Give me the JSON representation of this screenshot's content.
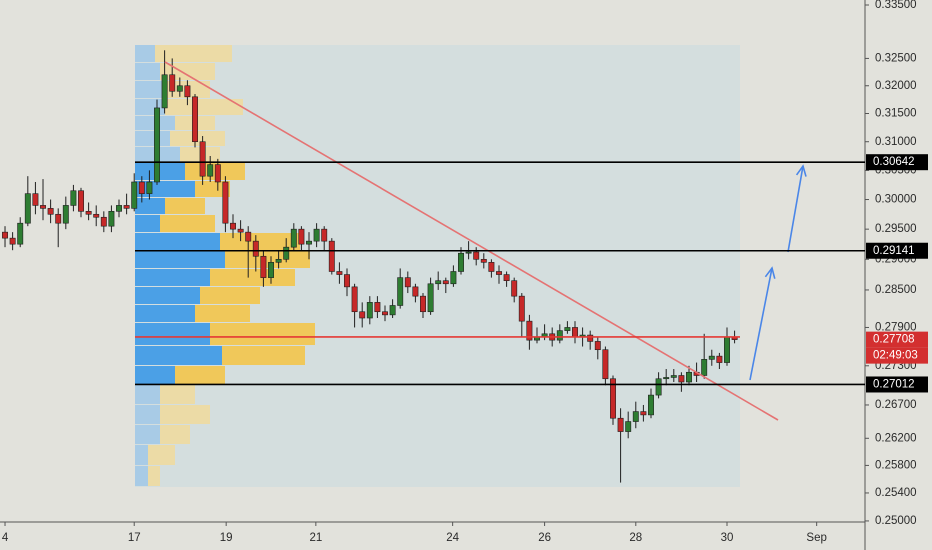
{
  "chart_data": {
    "type": "candlestick",
    "log_scale": true,
    "up_color": "#2e7d32",
    "down_color": "#c62828",
    "xlim": [
      -0.66,
      113.16
    ],
    "xticks": [
      {
        "value": 0,
        "label": "4"
      },
      {
        "value": 17,
        "label": "17"
      },
      {
        "value": 29.1,
        "label": "19"
      },
      {
        "value": 40.9,
        "label": "21"
      },
      {
        "value": 58.9,
        "label": "24"
      },
      {
        "value": 71,
        "label": "26"
      },
      {
        "value": 83,
        "label": "28"
      },
      {
        "value": 95,
        "label": "30"
      },
      {
        "value": 106.8,
        "label": "Sep"
      }
    ],
    "ylim": [
      0.24985,
      0.33595
    ],
    "yticks": [
      {
        "value": 0.335,
        "label": "0.33500"
      },
      {
        "value": 0.325,
        "label": "0.32500"
      },
      {
        "value": 0.32,
        "label": "0.32000"
      },
      {
        "value": 0.315,
        "label": "0.31500"
      },
      {
        "value": 0.31,
        "label": "0.31000"
      },
      {
        "value": 0.305,
        "label": "0.30500"
      },
      {
        "value": 0.3,
        "label": "0.30000"
      },
      {
        "value": 0.295,
        "label": "0.29500"
      },
      {
        "value": 0.29,
        "label": "0.29000"
      },
      {
        "value": 0.285,
        "label": "0.28500"
      },
      {
        "value": 0.279,
        "label": "0.27900"
      },
      {
        "value": 0.273,
        "label": "0.27300"
      },
      {
        "value": 0.267,
        "label": "0.26700"
      },
      {
        "value": 0.262,
        "label": "0.26200"
      },
      {
        "value": 0.258,
        "label": "0.25800"
      },
      {
        "value": 0.254,
        "label": "0.25400"
      },
      {
        "value": 0.25,
        "label": "0.25000"
      }
    ],
    "open": [
      0.2945,
      0.2935,
      0.2925,
      0.296,
      0.301,
      0.299,
      0.2985,
      0.2975,
      0.296,
      0.299,
      0.3015,
      0.298,
      0.2975,
      0.297,
      0.2955,
      0.298,
      0.299,
      0.2985,
      0.303,
      0.301,
      0.303,
      0.316,
      0.322,
      0.319,
      0.32,
      0.318,
      0.31,
      0.304,
      0.306,
      0.303,
      0.296,
      0.295,
      0.2945,
      0.293,
      0.2905,
      0.287,
      0.2895,
      0.29,
      0.292,
      0.295,
      0.2925,
      0.293,
      0.295,
      0.293,
      0.288,
      0.2875,
      0.2855,
      0.2815,
      0.2805,
      0.283,
      0.2815,
      0.281,
      0.2825,
      0.287,
      0.2855,
      0.284,
      0.2815,
      0.286,
      0.2865,
      0.286,
      0.288,
      0.291,
      0.2912,
      0.29,
      0.2895,
      0.288,
      0.2875,
      0.2865,
      0.284,
      0.28,
      0.277,
      0.2775,
      0.278,
      0.277,
      0.2785,
      0.279,
      0.2775,
      0.2778,
      0.2768,
      0.2755,
      0.271,
      0.265,
      0.263,
      0.2645,
      0.266,
      0.2655,
      0.2685,
      0.271,
      0.2712,
      0.2715,
      0.2705,
      0.272,
      0.2715,
      0.274,
      0.2745,
      0.2735,
      0.2775
    ],
    "high": [
      0.2955,
      0.2945,
      0.297,
      0.304,
      0.303,
      0.3035,
      0.3,
      0.2985,
      0.3005,
      0.3025,
      0.302,
      0.2995,
      0.299,
      0.298,
      0.299,
      0.3,
      0.301,
      0.3045,
      0.304,
      0.305,
      0.3175,
      0.3265,
      0.325,
      0.3215,
      0.321,
      0.3185,
      0.311,
      0.3075,
      0.307,
      0.304,
      0.2975,
      0.2965,
      0.2955,
      0.294,
      0.2915,
      0.2905,
      0.2915,
      0.2935,
      0.296,
      0.2955,
      0.2945,
      0.296,
      0.2955,
      0.2935,
      0.2895,
      0.2885,
      0.286,
      0.283,
      0.284,
      0.284,
      0.2825,
      0.2835,
      0.2885,
      0.288,
      0.286,
      0.2845,
      0.287,
      0.288,
      0.287,
      0.289,
      0.292,
      0.293,
      0.292,
      0.291,
      0.29,
      0.289,
      0.288,
      0.287,
      0.2845,
      0.281,
      0.279,
      0.2795,
      0.279,
      0.2795,
      0.28,
      0.28,
      0.279,
      0.2785,
      0.2775,
      0.276,
      0.2715,
      0.2665,
      0.266,
      0.2675,
      0.267,
      0.2695,
      0.272,
      0.2725,
      0.2725,
      0.272,
      0.273,
      0.2735,
      0.278,
      0.2755,
      0.275,
      0.279,
      0.2785
    ],
    "low": [
      0.292,
      0.2915,
      0.292,
      0.2955,
      0.2975,
      0.2965,
      0.296,
      0.292,
      0.295,
      0.298,
      0.297,
      0.2965,
      0.2955,
      0.2945,
      0.2945,
      0.297,
      0.2975,
      0.298,
      0.2995,
      0.3,
      0.3025,
      0.315,
      0.318,
      0.318,
      0.3165,
      0.309,
      0.3025,
      0.303,
      0.3015,
      0.2945,
      0.2935,
      0.293,
      0.287,
      0.288,
      0.2855,
      0.286,
      0.2885,
      0.2895,
      0.2915,
      0.2915,
      0.29,
      0.292,
      0.2915,
      0.2875,
      0.286,
      0.284,
      0.279,
      0.279,
      0.2795,
      0.2805,
      0.28,
      0.2805,
      0.282,
      0.2845,
      0.283,
      0.2805,
      0.281,
      0.285,
      0.2845,
      0.2855,
      0.2875,
      0.29,
      0.289,
      0.2885,
      0.287,
      0.286,
      0.2855,
      0.283,
      0.2775,
      0.2755,
      0.2765,
      0.277,
      0.276,
      0.2765,
      0.278,
      0.2765,
      0.276,
      0.2755,
      0.274,
      0.27,
      0.264,
      0.2555,
      0.262,
      0.2635,
      0.2645,
      0.265,
      0.268,
      0.27,
      0.2705,
      0.269,
      0.27,
      0.2705,
      0.271,
      0.273,
      0.2725,
      0.273,
      0.2765
    ],
    "close": [
      0.2935,
      0.2925,
      0.296,
      0.301,
      0.299,
      0.2985,
      0.2975,
      0.296,
      0.299,
      0.3015,
      0.298,
      0.2975,
      0.297,
      0.2955,
      0.298,
      0.299,
      0.2985,
      0.303,
      0.301,
      0.303,
      0.316,
      0.322,
      0.319,
      0.32,
      0.318,
      0.31,
      0.304,
      0.306,
      0.303,
      0.296,
      0.295,
      0.2945,
      0.293,
      0.2905,
      0.287,
      0.2895,
      0.29,
      0.292,
      0.295,
      0.2925,
      0.293,
      0.295,
      0.293,
      0.288,
      0.2875,
      0.2855,
      0.2815,
      0.2805,
      0.283,
      0.2815,
      0.281,
      0.2825,
      0.287,
      0.2855,
      0.284,
      0.2815,
      0.286,
      0.2865,
      0.286,
      0.288,
      0.291,
      0.2912,
      0.29,
      0.2895,
      0.288,
      0.2875,
      0.2865,
      0.284,
      0.28,
      0.277,
      0.2775,
      0.278,
      0.277,
      0.2785,
      0.279,
      0.2775,
      0.2778,
      0.2768,
      0.2755,
      0.271,
      0.265,
      0.263,
      0.2645,
      0.266,
      0.2655,
      0.2685,
      0.271,
      0.2712,
      0.2715,
      0.2705,
      0.272,
      0.2715,
      0.274,
      0.2745,
      0.2735,
      0.2775,
      0.27708
    ],
    "levels": [
      {
        "value": 0.30642,
        "label": "0.30642",
        "color": "#000000"
      },
      {
        "value": 0.29141,
        "label": "0.29141",
        "color": "#000000"
      },
      {
        "value": 0.2775,
        "color": "#e53935"
      },
      {
        "value": 0.27012,
        "label": "0.27012",
        "color": "#000000"
      }
    ],
    "last_price": {
      "value": 0.27708,
      "label": "0.27708",
      "countdown": "02:49:03",
      "color": "#d32f2f"
    }
  }
}
